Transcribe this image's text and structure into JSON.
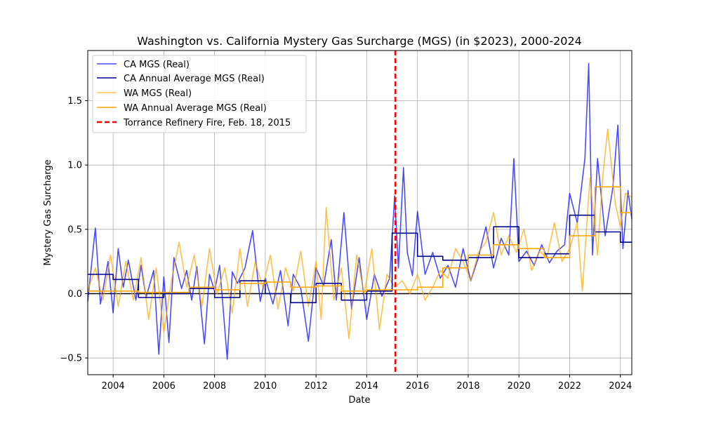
{
  "chart_data": {
    "type": "line",
    "title": "Washington vs. California Mystery Gas Surcharge (MGS) (in $2023), 2000-2024",
    "xlabel": "Date",
    "ylabel": "Mystery Gas Surcharge",
    "xlim": [
      2003.0,
      2024.45
    ],
    "ylim": [
      -0.63,
      1.89
    ],
    "xticks": [
      "2004",
      "2006",
      "2008",
      "2010",
      "2012",
      "2014",
      "2016",
      "2018",
      "2020",
      "2022",
      "2024"
    ],
    "yticks": [
      "−0.5",
      "0.0",
      "0.5",
      "1.0",
      "1.5"
    ],
    "grid": true,
    "legend_position": "upper-left",
    "colors": {
      "ca": "#0000ff",
      "ca_avg": "#00008b",
      "wa": "#ffa500",
      "wa_avg": "#ffa500",
      "event": "#ff0000",
      "zero": "#000000"
    },
    "series": [
      {
        "name": "CA MGS (Real)",
        "x": [
          2003.0,
          2003.3,
          2003.5,
          2003.8,
          2004.0,
          2004.2,
          2004.4,
          2004.6,
          2004.9,
          2005.1,
          2005.3,
          2005.6,
          2005.8,
          2006.0,
          2006.2,
          2006.4,
          2006.7,
          2006.9,
          2007.1,
          2007.3,
          2007.6,
          2007.8,
          2008.0,
          2008.2,
          2008.5,
          2008.7,
          2008.9,
          2009.2,
          2009.5,
          2009.8,
          2010.0,
          2010.3,
          2010.6,
          2010.9,
          2011.1,
          2011.4,
          2011.7,
          2012.0,
          2012.3,
          2012.6,
          2012.8,
          2013.1,
          2013.4,
          2013.7,
          2014.0,
          2014.3,
          2014.6,
          2014.9,
          2015.1,
          2015.25,
          2015.45,
          2015.6,
          2015.8,
          2016.0,
          2016.3,
          2016.6,
          2016.9,
          2017.2,
          2017.5,
          2017.8,
          2018.1,
          2018.4,
          2018.7,
          2019.0,
          2019.3,
          2019.6,
          2019.8,
          2020.0,
          2020.3,
          2020.6,
          2020.9,
          2021.2,
          2021.5,
          2021.8,
          2022.0,
          2022.3,
          2022.6,
          2022.75,
          2022.9,
          2023.1,
          2023.4,
          2023.7,
          2023.9,
          2024.1,
          2024.3,
          2024.45
        ],
        "values": [
          -0.06,
          0.51,
          -0.08,
          0.25,
          -0.15,
          0.35,
          0.05,
          0.26,
          -0.05,
          0.22,
          -0.03,
          0.18,
          -0.47,
          0.13,
          -0.38,
          0.28,
          0.04,
          0.18,
          -0.05,
          0.21,
          -0.39,
          0.15,
          0.02,
          0.22,
          -0.51,
          0.17,
          0.08,
          0.2,
          0.49,
          -0.06,
          0.12,
          -0.08,
          0.18,
          -0.25,
          0.15,
          0.04,
          -0.37,
          0.2,
          0.06,
          0.42,
          -0.05,
          0.63,
          -0.12,
          0.28,
          -0.2,
          0.15,
          -0.02,
          0.12,
          0.76,
          0.2,
          0.98,
          0.32,
          0.14,
          0.64,
          0.15,
          0.32,
          0.12,
          0.22,
          0.05,
          0.35,
          0.1,
          0.28,
          0.52,
          0.2,
          0.43,
          0.3,
          1.05,
          0.25,
          0.33,
          0.22,
          0.38,
          0.24,
          0.33,
          0.38,
          0.78,
          0.55,
          1.05,
          1.79,
          0.3,
          1.05,
          0.45,
          0.82,
          1.31,
          0.35,
          0.8,
          0.58
        ]
      },
      {
        "name": "CA Annual Average MGS (Real)",
        "x": [
          2003.0,
          2004.0,
          2005.0,
          2006.0,
          2007.0,
          2008.0,
          2009.0,
          2010.0,
          2011.0,
          2012.0,
          2013.0,
          2014.0,
          2015.0,
          2016.0,
          2017.0,
          2018.0,
          2019.0,
          2020.0,
          2021.0,
          2022.0,
          2023.0,
          2024.0
        ],
        "values": [
          0.15,
          0.11,
          -0.03,
          0.0,
          0.04,
          -0.03,
          0.1,
          0.0,
          -0.07,
          0.08,
          -0.05,
          0.02,
          0.47,
          0.29,
          0.26,
          0.28,
          0.52,
          0.28,
          0.31,
          0.61,
          0.48,
          0.4
        ]
      },
      {
        "name": "WA MGS (Real)",
        "x": [
          2003.0,
          2003.3,
          2003.6,
          2003.9,
          2004.2,
          2004.5,
          2004.8,
          2005.1,
          2005.4,
          2005.7,
          2006.0,
          2006.3,
          2006.6,
          2006.9,
          2007.2,
          2007.5,
          2007.8,
          2008.1,
          2008.4,
          2008.7,
          2009.0,
          2009.3,
          2009.6,
          2009.9,
          2010.2,
          2010.5,
          2010.8,
          2011.1,
          2011.4,
          2011.7,
          2012.0,
          2012.2,
          2012.4,
          2012.7,
          2013.0,
          2013.3,
          2013.6,
          2013.9,
          2014.2,
          2014.5,
          2014.8,
          2015.1,
          2015.4,
          2015.7,
          2016.0,
          2016.3,
          2016.6,
          2016.9,
          2017.2,
          2017.5,
          2017.8,
          2018.1,
          2018.4,
          2018.7,
          2019.0,
          2019.3,
          2019.6,
          2019.9,
          2020.2,
          2020.5,
          2020.8,
          2021.1,
          2021.4,
          2021.7,
          2022.0,
          2022.3,
          2022.5,
          2022.8,
          2023.1,
          2023.3,
          2023.5,
          2023.8,
          2024.0,
          2024.2,
          2024.45
        ],
        "values": [
          0.02,
          0.2,
          -0.05,
          0.3,
          -0.1,
          0.25,
          -0.05,
          0.28,
          -0.2,
          0.2,
          -0.3,
          0.1,
          0.4,
          0.05,
          0.3,
          -0.1,
          0.35,
          0.0,
          0.2,
          -0.15,
          0.35,
          -0.1,
          0.25,
          0.05,
          0.3,
          -0.12,
          0.2,
          0.02,
          0.33,
          -0.1,
          0.25,
          -0.2,
          0.67,
          -0.05,
          0.2,
          -0.35,
          0.3,
          0.0,
          0.35,
          -0.28,
          0.15,
          0.05,
          0.1,
          0.0,
          0.15,
          -0.05,
          0.05,
          0.18,
          0.12,
          0.35,
          0.25,
          0.1,
          0.32,
          0.4,
          0.63,
          0.3,
          0.45,
          0.32,
          0.5,
          0.18,
          0.33,
          0.28,
          0.55,
          0.25,
          0.35,
          0.55,
          0.02,
          0.9,
          0.3,
          0.9,
          1.28,
          0.7,
          0.52,
          0.78,
          0.75
        ]
      },
      {
        "name": "WA Annual Average MGS (Real)",
        "x": [
          2003.0,
          2004.0,
          2005.0,
          2006.0,
          2007.0,
          2008.0,
          2009.0,
          2010.0,
          2011.0,
          2012.0,
          2013.0,
          2014.0,
          2015.0,
          2016.0,
          2017.0,
          2018.0,
          2019.0,
          2020.0,
          2021.0,
          2022.0,
          2023.0,
          2024.0
        ],
        "values": [
          0.02,
          0.02,
          0.01,
          0.01,
          0.05,
          0.03,
          0.08,
          0.09,
          0.05,
          0.06,
          0.02,
          0.03,
          0.03,
          0.05,
          0.2,
          0.3,
          0.38,
          0.35,
          0.28,
          0.45,
          0.83,
          0.63
        ]
      }
    ],
    "annotations": [
      {
        "label": "Torrance Refinery Fire, Feb. 18, 2015",
        "x": 2015.13,
        "style": "dashed-vertical"
      }
    ]
  }
}
